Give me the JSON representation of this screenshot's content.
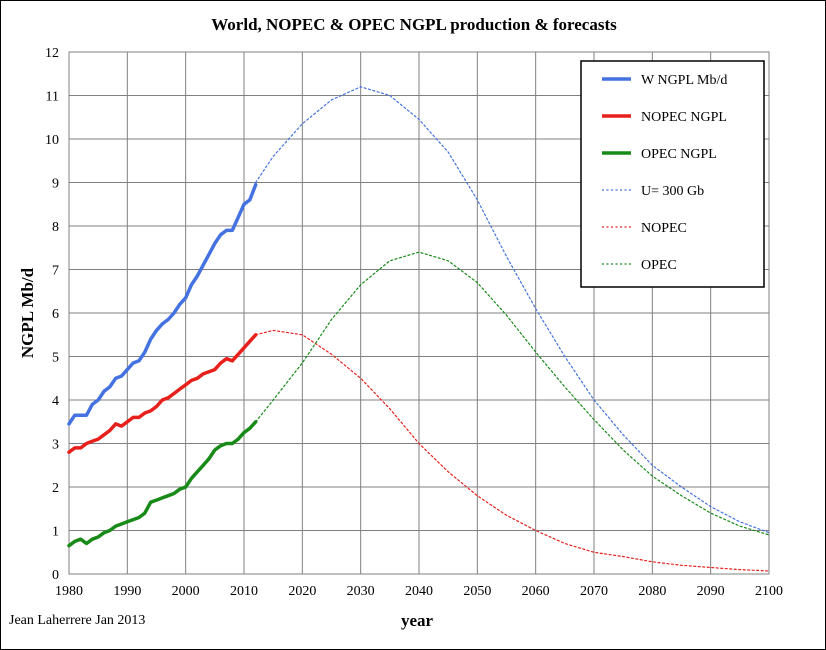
{
  "chart_data": {
    "type": "line",
    "title": "World, NOPEC & OPEC NGPL production & forecasts",
    "xlabel": "year",
    "ylabel": "NGPL Mb/d",
    "xlim": [
      1980,
      2100
    ],
    "ylim": [
      0,
      12
    ],
    "x_ticks": [
      1980,
      1990,
      2000,
      2010,
      2020,
      2030,
      2040,
      2050,
      2060,
      2070,
      2080,
      2090,
      2100
    ],
    "y_ticks": [
      0,
      1,
      2,
      3,
      4,
      5,
      6,
      7,
      8,
      9,
      10,
      11,
      12
    ],
    "grid": true,
    "legend_position": "top-right",
    "credit": "Jean Laherrere Jan 2013",
    "series": [
      {
        "name": "W NGPL Mb/d",
        "color": "#4472e0",
        "style": "solid",
        "x": [
          1980,
          1981,
          1982,
          1983,
          1984,
          1985,
          1986,
          1987,
          1988,
          1989,
          1990,
          1991,
          1992,
          1993,
          1994,
          1995,
          1996,
          1997,
          1998,
          1999,
          2000,
          2001,
          2002,
          2003,
          2004,
          2005,
          2006,
          2007,
          2008,
          2009,
          2010,
          2011,
          2012
        ],
        "y": [
          3.45,
          3.65,
          3.65,
          3.65,
          3.9,
          4.0,
          4.2,
          4.3,
          4.5,
          4.55,
          4.7,
          4.85,
          4.9,
          5.1,
          5.4,
          5.6,
          5.75,
          5.85,
          6.0,
          6.2,
          6.35,
          6.65,
          6.85,
          7.1,
          7.35,
          7.6,
          7.8,
          7.9,
          7.9,
          8.2,
          8.5,
          8.6,
          8.95
        ]
      },
      {
        "name": "NOPEC NGPL",
        "color": "#e8201c",
        "style": "solid",
        "x": [
          1980,
          1981,
          1982,
          1983,
          1984,
          1985,
          1986,
          1987,
          1988,
          1989,
          1990,
          1991,
          1992,
          1993,
          1994,
          1995,
          1996,
          1997,
          1998,
          1999,
          2000,
          2001,
          2002,
          2003,
          2004,
          2005,
          2006,
          2007,
          2008,
          2009,
          2010,
          2011,
          2012
        ],
        "y": [
          2.8,
          2.9,
          2.9,
          3.0,
          3.05,
          3.1,
          3.2,
          3.3,
          3.45,
          3.4,
          3.5,
          3.6,
          3.6,
          3.7,
          3.75,
          3.85,
          4.0,
          4.05,
          4.15,
          4.25,
          4.35,
          4.45,
          4.5,
          4.6,
          4.65,
          4.7,
          4.85,
          4.95,
          4.9,
          5.05,
          5.2,
          5.35,
          5.5
        ]
      },
      {
        "name": "OPEC NGPL",
        "color": "#188a18",
        "style": "solid",
        "x": [
          1980,
          1981,
          1982,
          1983,
          1984,
          1985,
          1986,
          1987,
          1988,
          1989,
          1990,
          1991,
          1992,
          1993,
          1994,
          1995,
          1996,
          1997,
          1998,
          1999,
          2000,
          2001,
          2002,
          2003,
          2004,
          2005,
          2006,
          2007,
          2008,
          2009,
          2010,
          2011,
          2012
        ],
        "y": [
          0.65,
          0.75,
          0.8,
          0.7,
          0.8,
          0.85,
          0.95,
          1.0,
          1.1,
          1.15,
          1.2,
          1.25,
          1.3,
          1.4,
          1.65,
          1.7,
          1.75,
          1.8,
          1.85,
          1.95,
          2.0,
          2.2,
          2.35,
          2.5,
          2.65,
          2.85,
          2.95,
          3.0,
          3.0,
          3.1,
          3.25,
          3.35,
          3.5
        ]
      },
      {
        "name": "U= 300 Gb",
        "color": "#4472e0",
        "style": "dotted",
        "x": [
          2012,
          2015,
          2020,
          2025,
          2030,
          2035,
          2040,
          2045,
          2050,
          2055,
          2060,
          2065,
          2070,
          2075,
          2080,
          2085,
          2090,
          2095,
          2100
        ],
        "y": [
          9.0,
          9.6,
          10.35,
          10.9,
          11.2,
          11.0,
          10.45,
          9.7,
          8.6,
          7.3,
          6.1,
          5.0,
          4.0,
          3.2,
          2.5,
          2.0,
          1.55,
          1.2,
          0.95
        ]
      },
      {
        "name": "NOPEC",
        "color": "#e8201c",
        "style": "dotted",
        "x": [
          2012,
          2015,
          2020,
          2025,
          2030,
          2035,
          2040,
          2045,
          2050,
          2055,
          2060,
          2065,
          2070,
          2075,
          2080,
          2085,
          2090,
          2095,
          2100
        ],
        "y": [
          5.5,
          5.6,
          5.5,
          5.05,
          4.5,
          3.8,
          3.0,
          2.35,
          1.8,
          1.35,
          1.0,
          0.7,
          0.5,
          0.4,
          0.28,
          0.2,
          0.15,
          0.1,
          0.07
        ]
      },
      {
        "name": "OPEC",
        "color": "#188a18",
        "style": "dotted",
        "x": [
          2012,
          2015,
          2020,
          2025,
          2030,
          2035,
          2040,
          2045,
          2050,
          2055,
          2060,
          2065,
          2070,
          2075,
          2080,
          2085,
          2090,
          2095,
          2100
        ],
        "y": [
          3.5,
          4.0,
          4.85,
          5.85,
          6.65,
          7.2,
          7.4,
          7.2,
          6.7,
          5.95,
          5.1,
          4.3,
          3.55,
          2.85,
          2.25,
          1.8,
          1.4,
          1.1,
          0.9
        ]
      }
    ]
  }
}
